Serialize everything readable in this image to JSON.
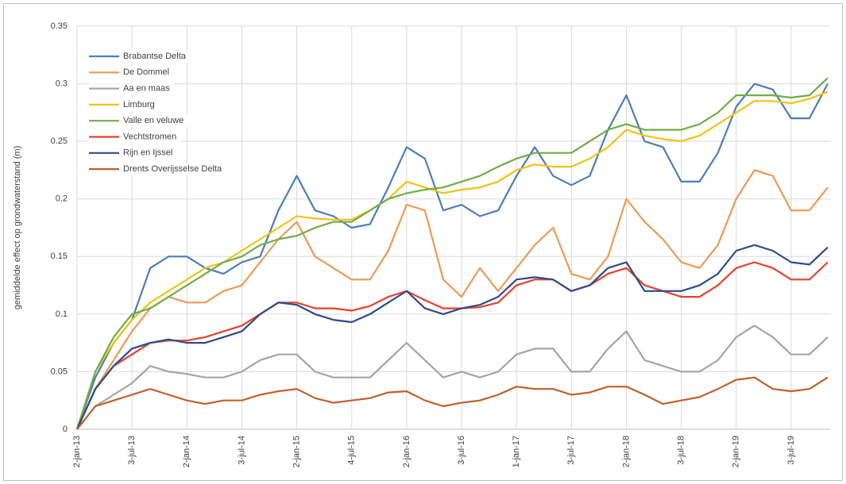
{
  "chart_data": {
    "type": "line",
    "y_label": "gemiddelde effect op grondwaterstand (m)",
    "categories": [
      "2-jan-13",
      null,
      null,
      "3-jul-13",
      null,
      null,
      "2-jan-14",
      null,
      null,
      "3-jul-14",
      null,
      null,
      "2-jan-15",
      null,
      null,
      "4-jul-15",
      null,
      null,
      "2-jan-16",
      null,
      null,
      "3-jul-16",
      null,
      null,
      "1-jan-17",
      null,
      null,
      "3-jul-17",
      null,
      null,
      "2-jan-18",
      null,
      null,
      "3-jul-18",
      null,
      null,
      "2-jan-19",
      null,
      null,
      "3-jul-19",
      null,
      null
    ],
    "ylim": [
      0,
      0.35
    ],
    "yticks": [
      0,
      0.05,
      0.1,
      0.15,
      0.2,
      0.25,
      0.3,
      0.35
    ],
    "grid": true,
    "legend": "top-left",
    "series": [
      {
        "name": "Brabantse Delta",
        "color": "#4a7ebb",
        "values": [
          0,
          0.045,
          0.075,
          0.095,
          0.14,
          0.15,
          0.15,
          0.14,
          0.135,
          0.145,
          0.15,
          0.19,
          0.22,
          0.19,
          0.185,
          0.175,
          0.178,
          0.21,
          0.245,
          0.235,
          0.19,
          0.195,
          0.185,
          0.19,
          0.22,
          0.245,
          0.22,
          0.212,
          0.22,
          0.26,
          0.29,
          0.25,
          0.245,
          0.215,
          0.215,
          0.24,
          0.28,
          0.3,
          0.295,
          0.27,
          0.27,
          0.3
        ]
      },
      {
        "name": "De Dommel",
        "color": "#ed9a55",
        "values": [
          0,
          0.035,
          0.06,
          0.085,
          0.105,
          0.115,
          0.11,
          0.11,
          0.12,
          0.125,
          0.145,
          0.165,
          0.18,
          0.15,
          0.14,
          0.13,
          0.13,
          0.155,
          0.195,
          0.19,
          0.13,
          0.115,
          0.14,
          0.12,
          0.14,
          0.16,
          0.175,
          0.135,
          0.13,
          0.15,
          0.2,
          0.18,
          0.165,
          0.145,
          0.14,
          0.16,
          0.2,
          0.225,
          0.22,
          0.19,
          0.19,
          0.21
        ]
      },
      {
        "name": "Aa en maas",
        "color": "#a5a5a5",
        "values": [
          0,
          0.02,
          0.03,
          0.04,
          0.055,
          0.05,
          0.048,
          0.045,
          0.045,
          0.05,
          0.06,
          0.065,
          0.065,
          0.05,
          0.045,
          0.045,
          0.045,
          0.06,
          0.075,
          0.06,
          0.045,
          0.05,
          0.045,
          0.05,
          0.065,
          0.07,
          0.07,
          0.05,
          0.05,
          0.07,
          0.085,
          0.06,
          0.055,
          0.05,
          0.05,
          0.06,
          0.08,
          0.09,
          0.08,
          0.065,
          0.065,
          0.08
        ]
      },
      {
        "name": "Limburg",
        "color": "#f2c314",
        "values": [
          0,
          0.05,
          0.075,
          0.095,
          0.11,
          0.12,
          0.13,
          0.14,
          0.145,
          0.155,
          0.165,
          0.175,
          0.185,
          0.183,
          0.182,
          0.182,
          0.19,
          0.2,
          0.215,
          0.21,
          0.205,
          0.208,
          0.21,
          0.215,
          0.225,
          0.23,
          0.228,
          0.228,
          0.235,
          0.245,
          0.26,
          0.255,
          0.252,
          0.25,
          0.255,
          0.265,
          0.275,
          0.285,
          0.285,
          0.283,
          0.287,
          0.293
        ]
      },
      {
        "name": "Valle en veluwe",
        "color": "#70ad47",
        "values": [
          0,
          0.05,
          0.08,
          0.1,
          0.105,
          0.115,
          0.125,
          0.135,
          0.145,
          0.15,
          0.16,
          0.165,
          0.168,
          0.175,
          0.18,
          0.18,
          0.19,
          0.2,
          0.205,
          0.208,
          0.21,
          0.215,
          0.22,
          0.228,
          0.235,
          0.24,
          0.24,
          0.24,
          0.25,
          0.26,
          0.265,
          0.26,
          0.26,
          0.26,
          0.265,
          0.275,
          0.29,
          0.29,
          0.29,
          0.288,
          0.29,
          0.305
        ]
      },
      {
        "name": "Vechtstromen",
        "color": "#e8412c",
        "values": [
          0,
          0.035,
          0.055,
          0.065,
          0.075,
          0.077,
          0.077,
          0.08,
          0.085,
          0.09,
          0.1,
          0.11,
          0.11,
          0.105,
          0.105,
          0.103,
          0.107,
          0.115,
          0.12,
          0.112,
          0.105,
          0.105,
          0.106,
          0.11,
          0.125,
          0.13,
          0.13,
          0.12,
          0.125,
          0.135,
          0.14,
          0.125,
          0.12,
          0.115,
          0.115,
          0.125,
          0.14,
          0.145,
          0.14,
          0.13,
          0.13,
          0.145
        ]
      },
      {
        "name": "Rijn en Ijssel",
        "color": "#2e4a8c",
        "values": [
          0,
          0.035,
          0.055,
          0.07,
          0.075,
          0.078,
          0.075,
          0.075,
          0.08,
          0.085,
          0.1,
          0.11,
          0.108,
          0.1,
          0.095,
          0.093,
          0.1,
          0.11,
          0.12,
          0.105,
          0.1,
          0.105,
          0.108,
          0.115,
          0.13,
          0.132,
          0.13,
          0.12,
          0.125,
          0.14,
          0.145,
          0.12,
          0.12,
          0.12,
          0.125,
          0.135,
          0.155,
          0.16,
          0.155,
          0.145,
          0.143,
          0.158
        ]
      },
      {
        "name": "Drents Overijsselse Delta",
        "color": "#c0602a",
        "values": [
          0,
          0.02,
          0.025,
          0.03,
          0.035,
          0.03,
          0.025,
          0.022,
          0.025,
          0.025,
          0.03,
          0.033,
          0.035,
          0.027,
          0.023,
          0.025,
          0.027,
          0.032,
          0.033,
          0.025,
          0.02,
          0.023,
          0.025,
          0.03,
          0.037,
          0.035,
          0.035,
          0.03,
          0.032,
          0.037,
          0.037,
          0.03,
          0.022,
          0.025,
          0.028,
          0.035,
          0.043,
          0.045,
          0.035,
          0.033,
          0.035,
          0.045
        ]
      }
    ]
  }
}
